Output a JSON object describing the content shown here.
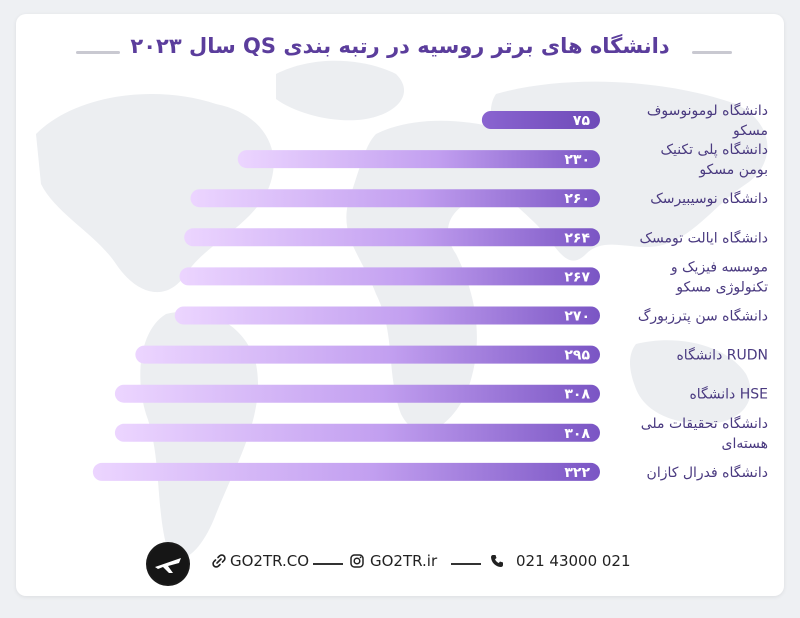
{
  "title": "دانشگاه های برتر روسیه در رتبه بندی QS سال ۲۰۲۳",
  "colors": {
    "title": "#5b3d9c",
    "bar_dark": "#7a55c4",
    "bar_light": "#ecd5ff",
    "label": "#4a3a80"
  },
  "footer": {
    "website": "GO2TR.CO",
    "instagram": "GO2TR.ir",
    "phone": "021 43000 021",
    "icons": [
      "link-icon",
      "instagram-icon",
      "phone-icon",
      "go2tr-logo"
    ]
  },
  "chart_data": {
    "type": "bar",
    "orientation": "horizontal",
    "categories": [
      [
        "دانشگاه لومونوسوف",
        "مسکو"
      ],
      [
        "دانشگاه پلی تکنیک",
        "بومن مسکو"
      ],
      [
        "دانشگاه نوسیبیرسک"
      ],
      [
        "دانشگاه ایالت تومسک"
      ],
      [
        "موسسه فیزیک و",
        "تکنولوژی مسکو"
      ],
      [
        "دانشگاه سن پترزبورگ"
      ],
      [
        "RUDN دانشگاه"
      ],
      [
        "HSE دانشگاه"
      ],
      [
        "دانشگاه تحقیقات ملی",
        "هسته‌ای"
      ],
      [
        "دانشگاه فدرال کازان"
      ]
    ],
    "values": [
      75,
      230,
      260,
      264,
      267,
      270,
      295,
      308,
      308,
      322
    ],
    "value_labels": [
      "۷۵",
      "۲۳۰",
      "۲۶۰",
      "۲۶۴",
      "۲۶۷",
      "۲۷۰",
      "۲۹۵",
      "۳۰۸",
      "۳۰۸",
      "۳۲۲"
    ],
    "grid": false,
    "legend": "none"
  }
}
